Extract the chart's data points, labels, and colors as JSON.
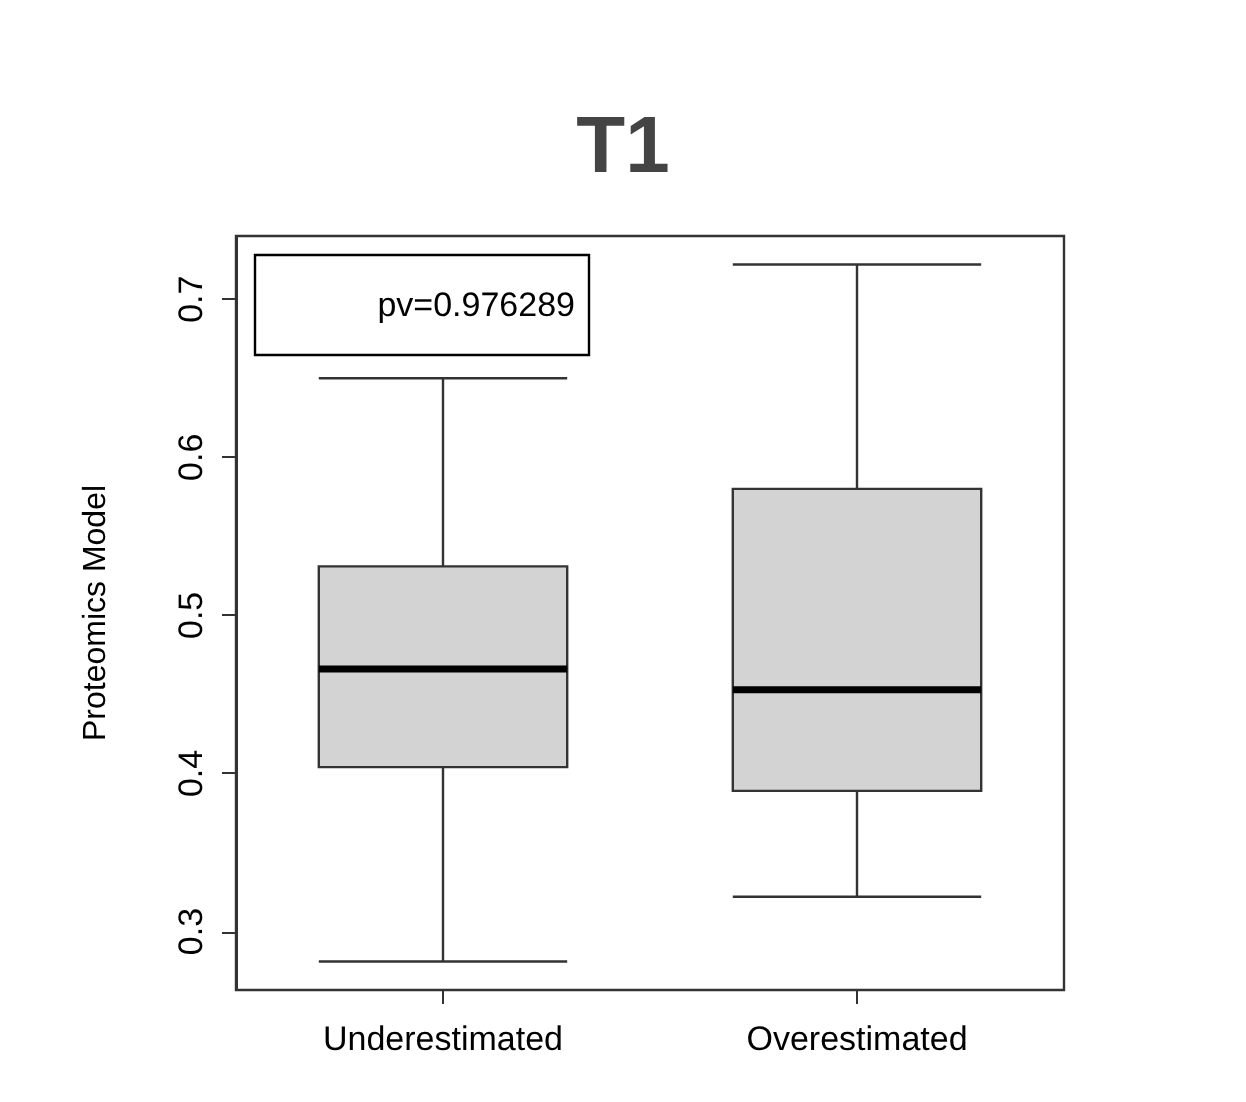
{
  "chart_data": {
    "type": "box",
    "title": "T1",
    "ylabel": "Proteomics Model",
    "categories": [
      "Underestimated",
      "Overestimated"
    ],
    "color": "#d3d3d3",
    "boxes": [
      {
        "low": 0.281,
        "q1": 0.404,
        "median": 0.466,
        "q3": 0.531,
        "high": 0.65
      },
      {
        "low": 0.322,
        "q1": 0.389,
        "median": 0.453,
        "q3": 0.58,
        "high": 0.722
      }
    ],
    "ylim": [
      0.263,
      0.74
    ],
    "yticks": [
      0.3,
      0.4,
      0.5,
      0.6,
      0.7
    ],
    "grid": false,
    "annotations": [
      "pv=0.976289"
    ]
  }
}
